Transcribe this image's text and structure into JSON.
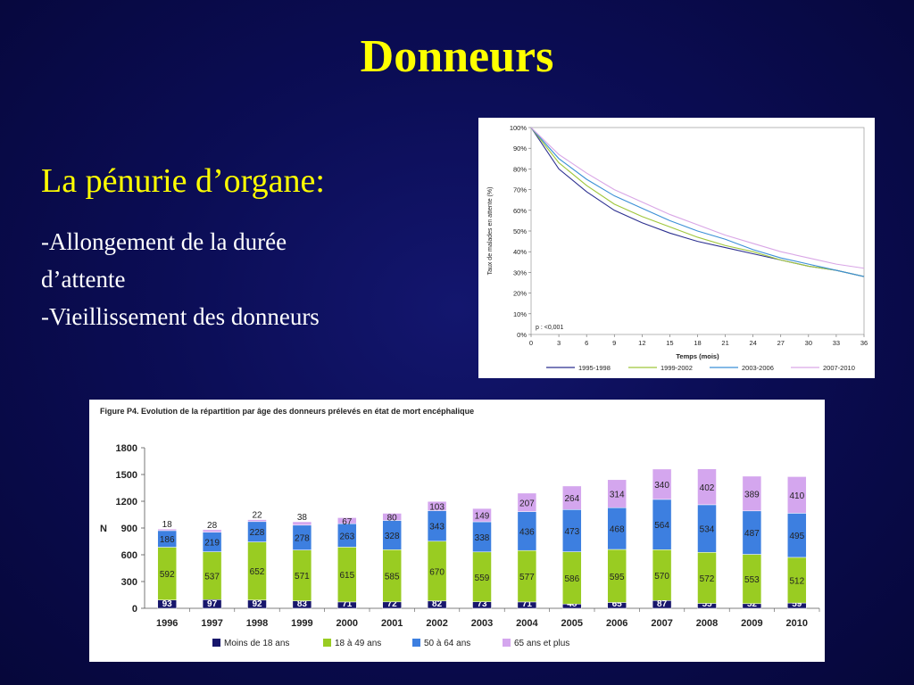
{
  "slide": {
    "title": "Donneurs",
    "subtitle": "La pénurie d’organe:",
    "bullets": [
      "-Allongement de la durée",
      "d’attente",
      "-Vieillissement des donneurs"
    ]
  },
  "colors": {
    "background": "#0b0d55",
    "title": "#ffff00",
    "text": "#ffffff"
  },
  "chart_data": [
    {
      "type": "line",
      "title": "",
      "xlabel": "Temps (mois)",
      "ylabel": "Taux de malades en attente (%)",
      "x": [
        0,
        3,
        6,
        9,
        12,
        15,
        18,
        21,
        24,
        27,
        30,
        33,
        36
      ],
      "x_tick_labels": [
        "0",
        "3",
        "6",
        "9",
        "12",
        "15",
        "18",
        "21",
        "24",
        "27",
        "30",
        "33",
        "36"
      ],
      "y_tick_labels": [
        "0%",
        "10%",
        "20%",
        "30%",
        "40%",
        "50%",
        "60%",
        "70%",
        "80%",
        "90%",
        "100%"
      ],
      "xlim": [
        0,
        36
      ],
      "ylim": [
        0,
        100
      ],
      "annotation": "p : <0,001",
      "legend_position": "bottom",
      "series": [
        {
          "name": "1995-1998",
          "color": "#2b2f8f",
          "values": [
            100,
            80,
            69,
            60,
            54,
            49,
            45,
            42,
            39,
            36,
            33,
            31,
            28
          ]
        },
        {
          "name": "1999-2002",
          "color": "#9fc63a",
          "values": [
            100,
            83,
            72,
            63,
            57,
            52,
            47,
            43,
            40,
            36,
            33,
            31,
            28
          ]
        },
        {
          "name": "2003-2006",
          "color": "#3a8fd6",
          "values": [
            100,
            85,
            75,
            67,
            61,
            55,
            50,
            46,
            41,
            37,
            34,
            31,
            28
          ]
        },
        {
          "name": "2007-2010",
          "color": "#d9a6e6",
          "values": [
            100,
            87,
            78,
            70,
            64,
            58,
            53,
            48,
            44,
            40,
            37,
            34,
            32
          ]
        }
      ]
    },
    {
      "type": "bar",
      "stacked": true,
      "title": "Figure P4. Evolution de la répartition par âge des donneurs prélevés en état de mort encéphalique",
      "xlabel": "",
      "ylabel": "N",
      "ylim": [
        0,
        1800
      ],
      "y_tick_labels": [
        "0",
        "300",
        "600",
        "900",
        "1200",
        "1500",
        "1800"
      ],
      "categories": [
        "1996",
        "1997",
        "1998",
        "1999",
        "2000",
        "2001",
        "2002",
        "2003",
        "2004",
        "2005",
        "2006",
        "2007",
        "2008",
        "2009",
        "2010"
      ],
      "legend_position": "bottom",
      "series": [
        {
          "name": "Moins de 18 ans",
          "color": "#17166b",
          "values": [
            93,
            97,
            92,
            83,
            71,
            72,
            82,
            73,
            71,
            48,
            65,
            87,
            55,
            52,
            59
          ]
        },
        {
          "name": "18 à 49 ans",
          "color": "#99cc22",
          "values": [
            592,
            537,
            652,
            571,
            615,
            585,
            670,
            559,
            577,
            586,
            595,
            570,
            572,
            553,
            512
          ]
        },
        {
          "name": "50 à 64 ans",
          "color": "#3d7fe0",
          "values": [
            186,
            219,
            228,
            278,
            263,
            328,
            343,
            338,
            436,
            473,
            468,
            564,
            534,
            487,
            495
          ]
        },
        {
          "name": "65 ans et plus",
          "color": "#d4a6ee",
          "values": [
            18,
            28,
            22,
            38,
            67,
            80,
            103,
            149,
            207,
            264,
            314,
            340,
            402,
            389,
            410
          ]
        }
      ]
    }
  ]
}
